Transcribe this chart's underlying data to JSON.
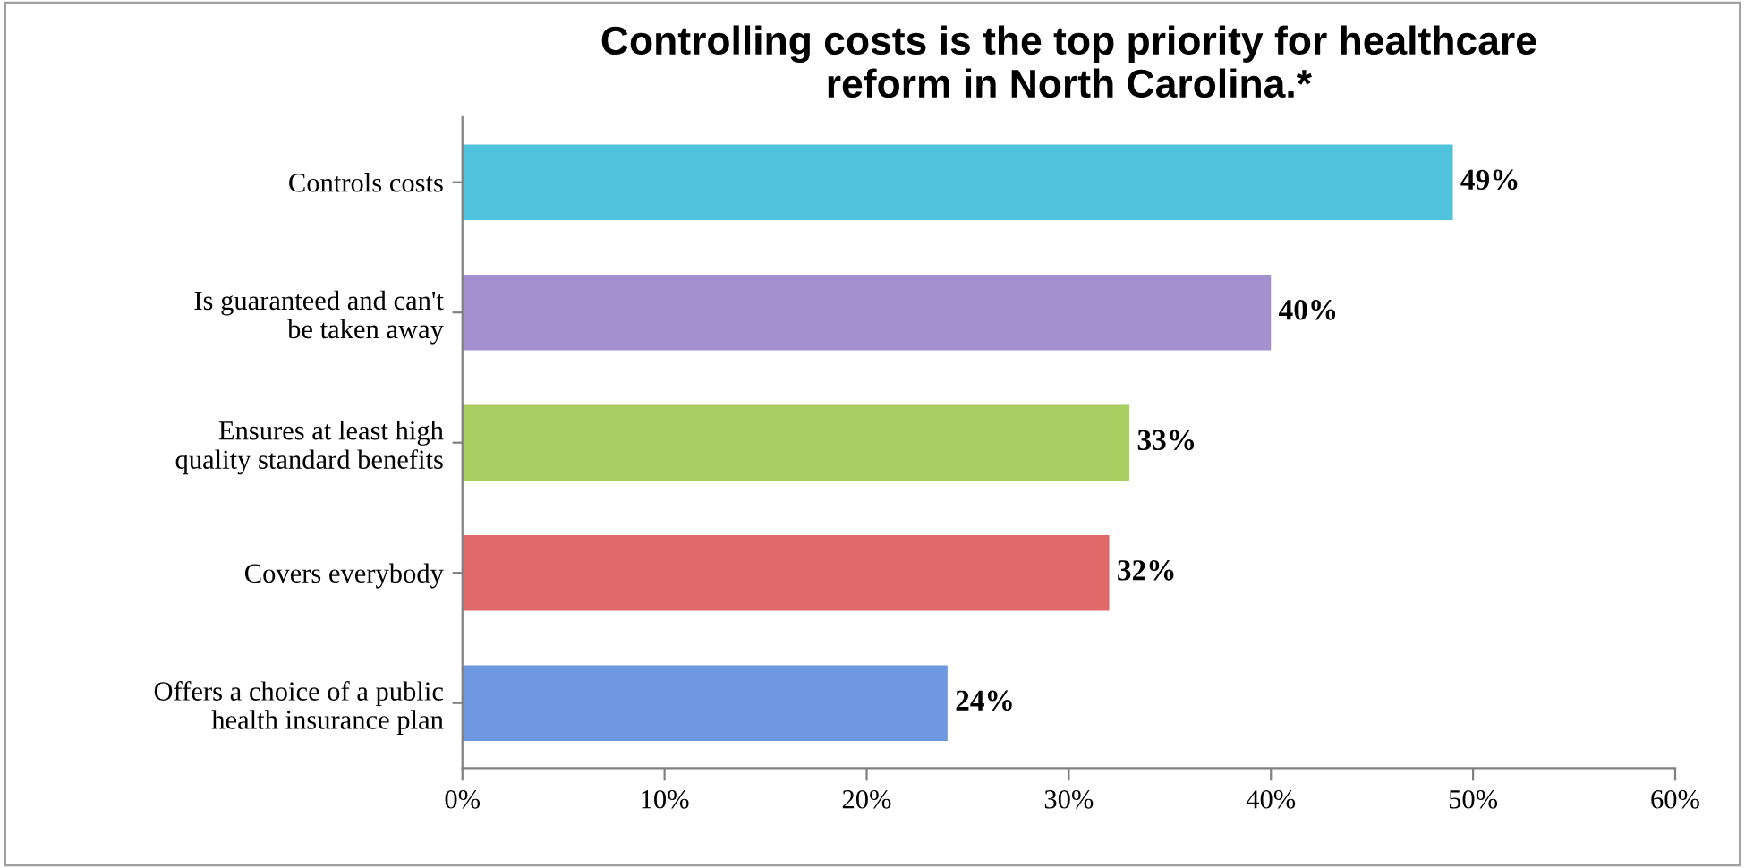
{
  "chart_data": {
    "type": "bar",
    "orientation": "horizontal",
    "title": "Controlling costs is the top priority for healthcare\nreform in North Carolina.*",
    "categories": [
      "Controls costs",
      "Is guaranteed and can't\nbe taken away",
      "Ensures at least high\nquality standard benefits",
      "Covers everybody",
      "Offers a choice of a public\nhealth insurance plan"
    ],
    "values": [
      49,
      40,
      33,
      32,
      24
    ],
    "colors": [
      "#4fc3dc",
      "#a590cf",
      "#a9cf62",
      "#e06a6a",
      "#6d98e0"
    ],
    "value_labels": [
      "49%",
      "40%",
      "33%",
      "32%",
      "24%"
    ],
    "xlim": [
      0,
      60
    ],
    "xticks": [
      {
        "value": 0,
        "label": "0%"
      },
      {
        "value": 10,
        "label": "10%"
      },
      {
        "value": 20,
        "label": "20%"
      },
      {
        "value": 30,
        "label": "30%"
      },
      {
        "value": 40,
        "label": "40%"
      },
      {
        "value": 50,
        "label": "50%"
      },
      {
        "value": 60,
        "label": "60%"
      }
    ],
    "grid": false,
    "legend": false
  }
}
